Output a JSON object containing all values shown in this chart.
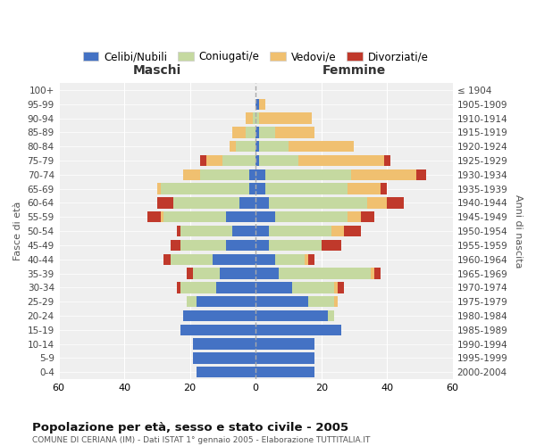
{
  "age_groups": [
    "0-4",
    "5-9",
    "10-14",
    "15-19",
    "20-24",
    "25-29",
    "30-34",
    "35-39",
    "40-44",
    "45-49",
    "50-54",
    "55-59",
    "60-64",
    "65-69",
    "70-74",
    "75-79",
    "80-84",
    "85-89",
    "90-94",
    "95-99",
    "100+"
  ],
  "birth_years": [
    "2000-2004",
    "1995-1999",
    "1990-1994",
    "1985-1989",
    "1980-1984",
    "1975-1979",
    "1970-1974",
    "1965-1969",
    "1960-1964",
    "1955-1959",
    "1950-1954",
    "1945-1949",
    "1940-1944",
    "1935-1939",
    "1930-1934",
    "1925-1929",
    "1920-1924",
    "1915-1919",
    "1910-1914",
    "1905-1909",
    "≤ 1904"
  ],
  "colors": {
    "celibe": "#4472C4",
    "coniugato": "#c5d9a0",
    "vedovo": "#f0c070",
    "divorziato": "#c0392b"
  },
  "males": {
    "celibe": [
      18,
      19,
      19,
      23,
      22,
      18,
      12,
      11,
      13,
      9,
      7,
      9,
      5,
      2,
      2,
      0,
      0,
      0,
      0,
      0,
      0
    ],
    "coniugato": [
      0,
      0,
      0,
      0,
      0,
      3,
      11,
      8,
      13,
      14,
      16,
      19,
      20,
      27,
      15,
      10,
      6,
      3,
      1,
      0,
      0
    ],
    "vedovo": [
      0,
      0,
      0,
      0,
      0,
      0,
      0,
      0,
      0,
      0,
      0,
      1,
      0,
      1,
      5,
      5,
      2,
      4,
      2,
      0,
      0
    ],
    "divorziato": [
      0,
      0,
      0,
      0,
      0,
      0,
      1,
      2,
      2,
      3,
      1,
      4,
      5,
      0,
      0,
      2,
      0,
      0,
      0,
      0,
      0
    ]
  },
  "females": {
    "celibe": [
      18,
      18,
      18,
      26,
      22,
      16,
      11,
      7,
      6,
      4,
      4,
      6,
      4,
      3,
      3,
      1,
      1,
      1,
      0,
      1,
      0
    ],
    "coniugato": [
      0,
      0,
      0,
      0,
      2,
      8,
      13,
      28,
      9,
      16,
      19,
      22,
      30,
      25,
      26,
      12,
      9,
      5,
      1,
      0,
      0
    ],
    "vedovo": [
      0,
      0,
      0,
      0,
      0,
      1,
      1,
      1,
      1,
      0,
      4,
      4,
      6,
      10,
      20,
      26,
      20,
      12,
      16,
      2,
      0
    ],
    "divorziato": [
      0,
      0,
      0,
      0,
      0,
      0,
      2,
      2,
      2,
      6,
      5,
      4,
      5,
      2,
      3,
      2,
      0,
      0,
      0,
      0,
      0
    ]
  },
  "title_main": "Popolazione per età, sesso e stato civile - 2005",
  "title_sub": "COMUNE DI CERIANA (IM) - Dati ISTAT 1° gennaio 2005 - Elaborazione TUTTITALIA.IT",
  "xlabel_left": "Maschi",
  "xlabel_right": "Femmine",
  "ylabel_left": "Fasce di età",
  "ylabel_right": "Anni di nascita",
  "xlim": 60,
  "bg_color": "#ffffff",
  "plot_bg": "#efefef",
  "grid_color": "#ffffff",
  "legend_labels": [
    "Celibi/Nubili",
    "Coniugati/e",
    "Vedovi/e",
    "Divorziati/e"
  ]
}
